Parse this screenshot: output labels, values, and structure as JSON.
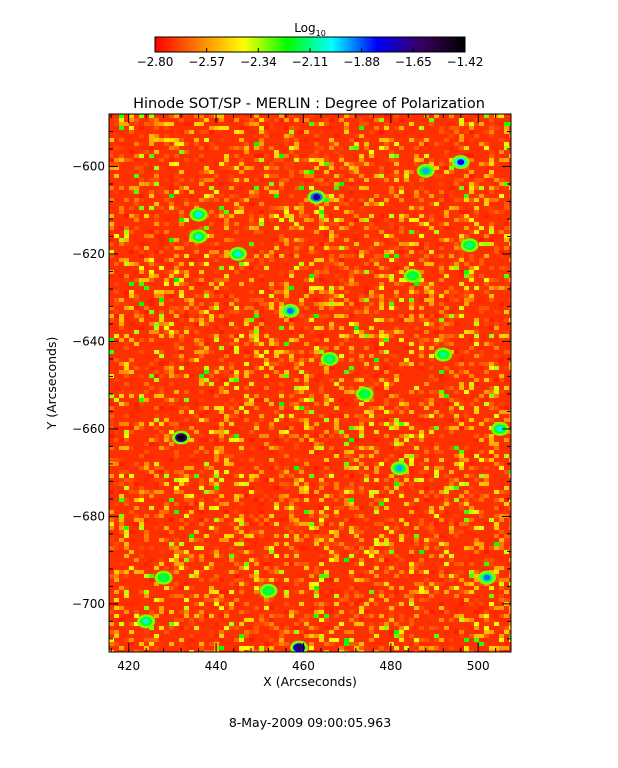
{
  "chart_data": {
    "type": "heatmap",
    "title": "Hinode SOT/SP - MERLIN : Degree of Polarization",
    "xlabel": "X (Arcseconds)",
    "ylabel": "Y (Arcseconds)",
    "xlim": [
      415.5,
      507.5
    ],
    "ylim": [
      -711,
      -588
    ],
    "x_ticks": [
      420,
      440,
      460,
      480,
      500
    ],
    "y_ticks": [
      -600,
      -620,
      -640,
      -660,
      -680,
      -700
    ],
    "x_tick_labels": [
      "420",
      "440",
      "460",
      "480",
      "500"
    ],
    "y_tick_labels": [
      "−600",
      "−620",
      "−640",
      "−660",
      "−680",
      "−700"
    ],
    "colorbar": {
      "label": "Log",
      "label_subscript": "10",
      "min": -2.8,
      "max": -1.42,
      "ticks": [
        -2.8,
        -2.57,
        -2.34,
        -2.11,
        -1.88,
        -1.65,
        -1.42
      ],
      "tick_labels": [
        "−2.80",
        "−2.57",
        "−2.34",
        "−2.11",
        "−1.88",
        "−1.65",
        "−1.42"
      ],
      "colormap": [
        "#ff0000",
        "#ff7f00",
        "#ffff00",
        "#00ff00",
        "#00ffff",
        "#0000ff",
        "#3a0060",
        "#000000"
      ]
    },
    "field_background": "#ff3000",
    "features": [
      {
        "x": 432,
        "y": -662,
        "value": -1.45
      },
      {
        "x": 463,
        "y": -607,
        "value": -1.7
      },
      {
        "x": 459,
        "y": -710,
        "value": -1.6
      },
      {
        "x": 496,
        "y": -599,
        "value": -1.8
      },
      {
        "x": 488,
        "y": -601,
        "value": -1.95
      },
      {
        "x": 457,
        "y": -633,
        "value": -1.9
      },
      {
        "x": 466,
        "y": -644,
        "value": -2.1
      },
      {
        "x": 445,
        "y": -620,
        "value": -2.0
      },
      {
        "x": 436,
        "y": -611,
        "value": -2.0
      },
      {
        "x": 482,
        "y": -669,
        "value": -1.95
      },
      {
        "x": 505,
        "y": -660,
        "value": -2.0
      },
      {
        "x": 492,
        "y": -643,
        "value": -2.1
      },
      {
        "x": 436,
        "y": -616,
        "value": -2.05
      },
      {
        "x": 424,
        "y": -704,
        "value": -2.05
      },
      {
        "x": 502,
        "y": -694,
        "value": -1.9
      },
      {
        "x": 498,
        "y": -618,
        "value": -2.1
      },
      {
        "x": 474,
        "y": -652,
        "value": -2.15
      },
      {
        "x": 428,
        "y": -694,
        "value": -2.15
      },
      {
        "x": 452,
        "y": -697,
        "value": -2.15
      },
      {
        "x": 485,
        "y": -625,
        "value": -2.15
      }
    ]
  },
  "footer": {
    "timestamp": "8-May-2009 09:00:05.963"
  }
}
